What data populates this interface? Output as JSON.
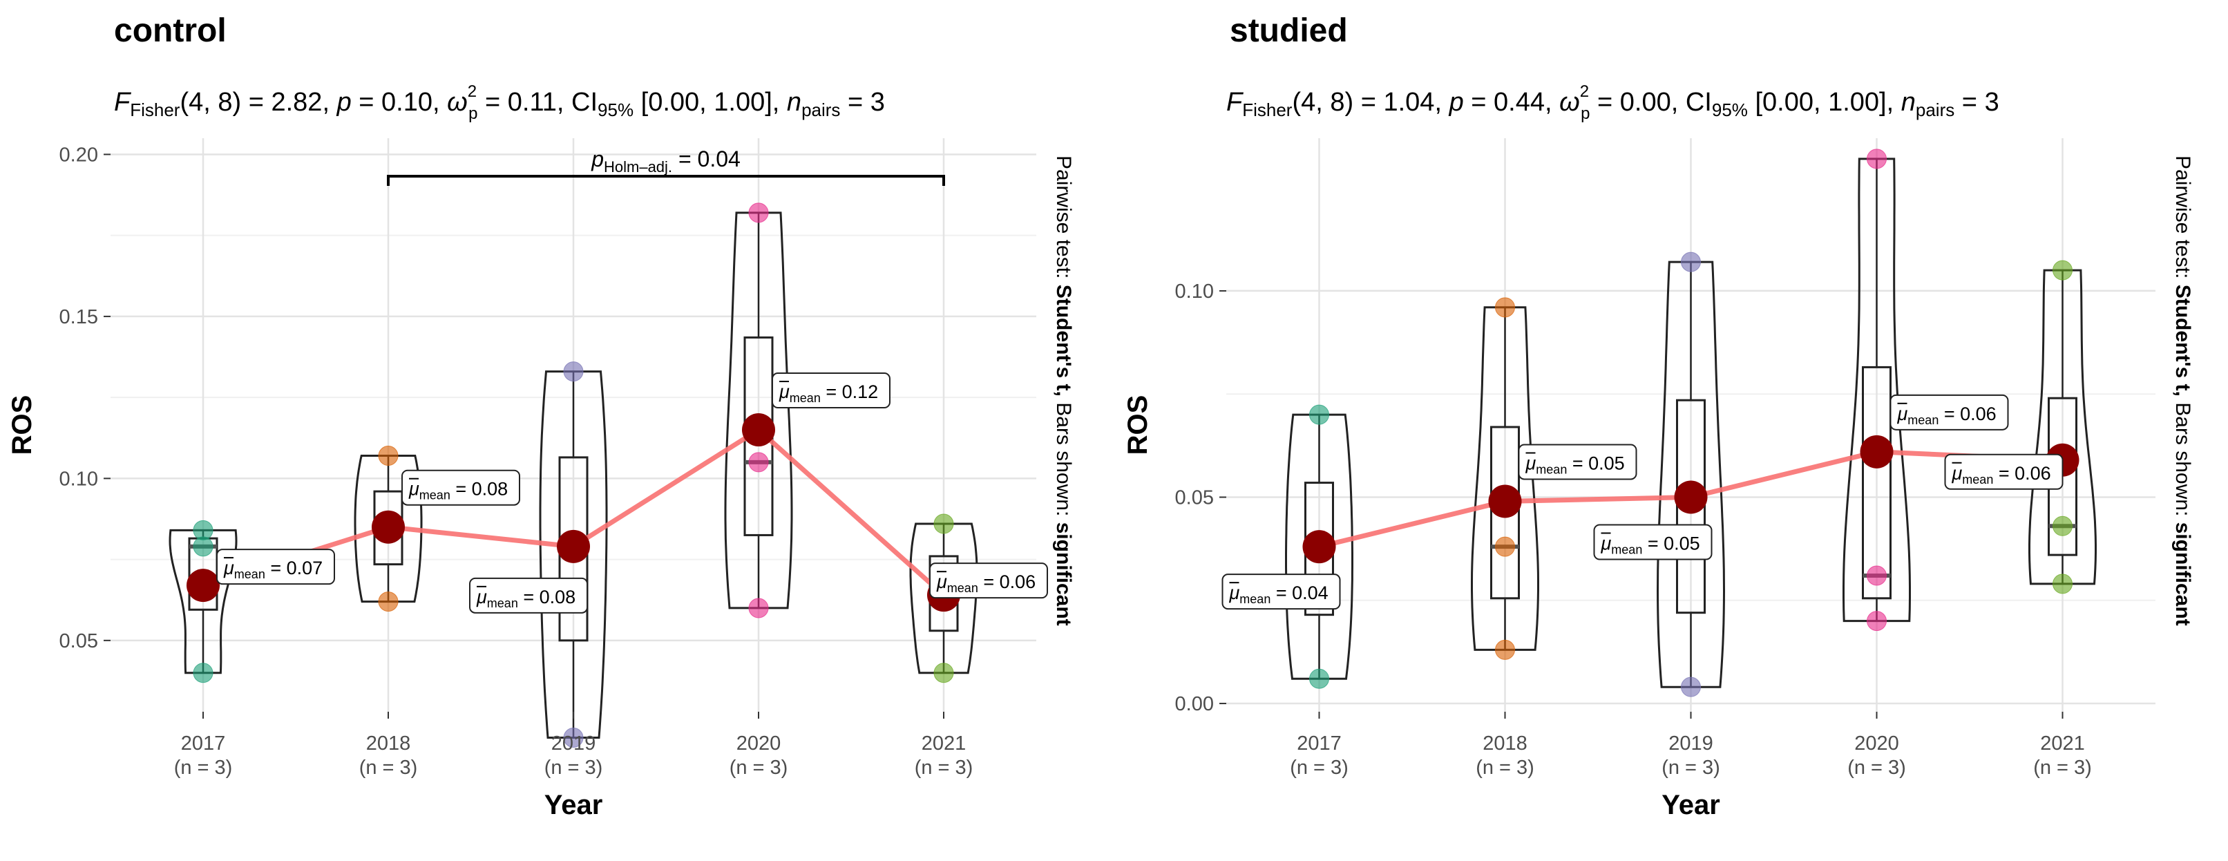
{
  "chart_data": [
    {
      "type": "violin-box",
      "title": "control",
      "stats": {
        "F_df": "(4, 8)",
        "F": "2.82",
        "p": "0.10",
        "omega2": "0.11",
        "ci": "[0.00, 1.00]",
        "n_pairs": "3"
      },
      "pairwise_note": "Pairwise test: Student's t, Bars shown: significant",
      "pairwise_prefix": "Pairwise test: ",
      "pairwise_test": "Student's t,",
      "pairwise_mid": " Bars shown: ",
      "pairwise_shown": "significant",
      "xlabel": "Year",
      "ylabel": "ROS",
      "ylim": [
        0.028,
        0.205
      ],
      "yticks": [
        "0.05",
        "0.10",
        "0.15",
        "0.20"
      ],
      "categories": [
        "2017",
        "2018",
        "2019",
        "2020",
        "2021"
      ],
      "n_labels": [
        "(n = 3)",
        "(n = 3)",
        "(n = 3)",
        "(n = 3)",
        "(n = 3)"
      ],
      "points": [
        [
          0.084,
          0.079,
          0.04
        ],
        [
          0.107,
          0.085,
          0.062
        ],
        [
          0.133,
          0.08,
          0.02
        ],
        [
          0.182,
          0.105,
          0.06
        ],
        [
          0.086,
          0.066,
          0.04
        ]
      ],
      "means": [
        0.067,
        0.085,
        0.079,
        0.115,
        0.064
      ],
      "mean_labels": [
        "0.07",
        "0.08",
        "0.08",
        "0.12",
        "0.06"
      ],
      "significance": [
        {
          "from": "2018",
          "to": "2021",
          "label": "0.04"
        }
      ],
      "colors": [
        "#1b9e77",
        "#d95f02",
        "#7570b3",
        "#e7298a",
        "#66a61e"
      ]
    },
    {
      "type": "violin-box",
      "title": "studied",
      "stats": {
        "F_df": "(4, 8)",
        "F": "1.04",
        "p": "0.44",
        "omega2": "0.00",
        "ci": "[0.00, 1.00]",
        "n_pairs": "3"
      },
      "pairwise_note": "Pairwise test: Student's t, Bars shown: significant",
      "pairwise_prefix": "Pairwise test: ",
      "pairwise_test": "Student's t,",
      "pairwise_mid": " Bars shown: ",
      "pairwise_shown": "significant",
      "xlabel": "Year",
      "ylabel": "ROS",
      "ylim": [
        -0.002,
        0.137
      ],
      "yticks": [
        "0.00",
        "0.05",
        "0.10"
      ],
      "categories": [
        "2017",
        "2018",
        "2019",
        "2020",
        "2021"
      ],
      "n_labels": [
        "(n = 3)",
        "(n = 3)",
        "(n = 3)",
        "(n = 3)",
        "(n = 3)"
      ],
      "points": [
        [
          0.07,
          0.037,
          0.006
        ],
        [
          0.096,
          0.038,
          0.013
        ],
        [
          0.107,
          0.04,
          0.004
        ],
        [
          0.132,
          0.031,
          0.02
        ],
        [
          0.105,
          0.043,
          0.029
        ]
      ],
      "means": [
        0.038,
        0.049,
        0.05,
        0.061,
        0.059
      ],
      "mean_labels": [
        "0.04",
        "0.05",
        "0.05",
        "0.06",
        "0.06"
      ],
      "significance": [],
      "colors": [
        "#1b9e77",
        "#d95f02",
        "#7570b3",
        "#e7298a",
        "#66a61e"
      ]
    }
  ]
}
